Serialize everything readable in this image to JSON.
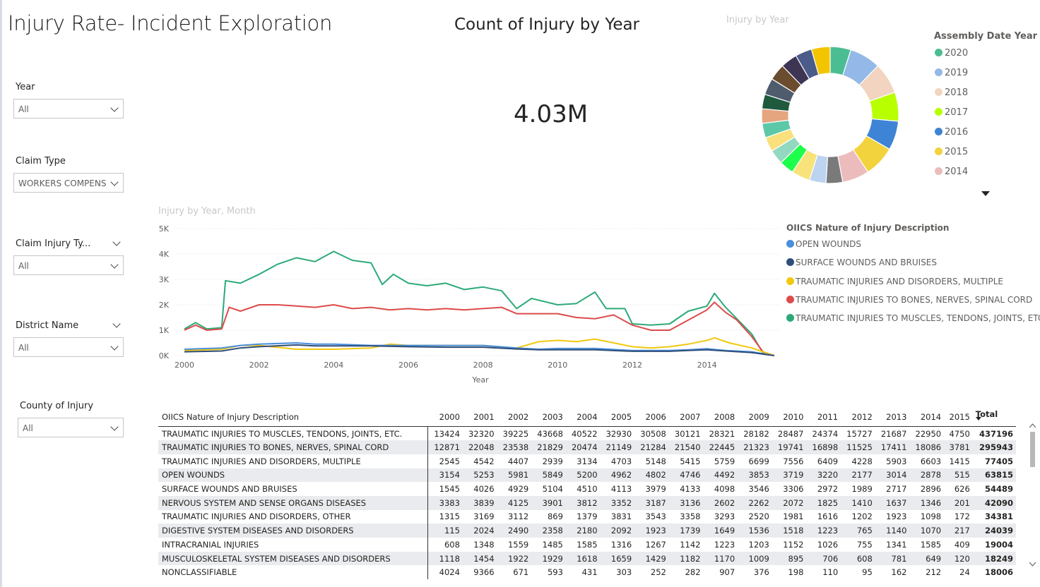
{
  "page": {
    "title": "Injury Rate- Incident Exploration"
  },
  "slicers": [
    {
      "label": "Year",
      "value": "All"
    },
    {
      "label": "Claim Type",
      "value": "WORKERS COMPENS..."
    },
    {
      "label": "Claim Injury Ty...",
      "value": "All"
    },
    {
      "label": "District Name",
      "value": "All"
    },
    {
      "label": "County of Injury",
      "value": "All"
    }
  ],
  "kpi": {
    "title": "Count of Injury by Year",
    "value": "4.03M"
  },
  "donut": {
    "title": "Injury by Year",
    "legend_title": "Assembly Date Year",
    "legend": [
      {
        "label": "2020",
        "color": "#4bbd92"
      },
      {
        "label": "2019",
        "color": "#94b9e8"
      },
      {
        "label": "2018",
        "color": "#f2d4c0"
      },
      {
        "label": "2017",
        "color": "#b8ff00"
      },
      {
        "label": "2016",
        "color": "#3e84d6"
      },
      {
        "label": "2015",
        "color": "#f3d33d"
      },
      {
        "label": "2014",
        "color": "#ecbcbc"
      }
    ],
    "segments": [
      {
        "color": "#4bbd92",
        "value": 1
      },
      {
        "color": "#94b9e8",
        "value": 1.5
      },
      {
        "color": "#f2d4c0",
        "value": 1.5
      },
      {
        "color": "#b8ff00",
        "value": 1.4
      },
      {
        "color": "#3e84d6",
        "value": 1.4
      },
      {
        "color": "#f3d33d",
        "value": 1.5
      },
      {
        "color": "#ecbcbc",
        "value": 1.3
      },
      {
        "color": "#7a7a7a",
        "value": 0.8
      },
      {
        "color": "#bcd4f0",
        "value": 0.8
      },
      {
        "color": "#f7e37a",
        "value": 0.9
      },
      {
        "color": "#1dff4a",
        "value": 0.7
      },
      {
        "color": "#93d8c0",
        "value": 0.7
      },
      {
        "color": "#f9e07c",
        "value": 0.7
      },
      {
        "color": "#5dc8a7",
        "value": 0.7
      },
      {
        "color": "#e4a57f",
        "value": 0.7
      },
      {
        "color": "#1f5a3e",
        "value": 0.7
      },
      {
        "color": "#4e5c6e",
        "value": 0.8
      },
      {
        "color": "#6b4c2f",
        "value": 0.8
      },
      {
        "color": "#3e3454",
        "value": 0.8
      },
      {
        "color": "#4b5c8a",
        "value": 0.8
      },
      {
        "color": "#f2c500",
        "value": 0.9
      }
    ]
  },
  "line_chart": {
    "title": "Injury by Year, Month",
    "legend_title": "OIICS Nature of Injury Description",
    "xlabel": "Year",
    "y_ticks": [
      "0K",
      "1K",
      "2K",
      "3K",
      "4K",
      "5K"
    ],
    "x_ticks": [
      "2000",
      "2002",
      "2004",
      "2006",
      "2008",
      "2010",
      "2012",
      "2014"
    ],
    "series": [
      {
        "name": "OPEN WOUNDS",
        "color": "#4a8fdc"
      },
      {
        "name": "SURFACE WOUNDS AND BRUISES",
        "color": "#2f4e7a"
      },
      {
        "name": "TRAUMATIC INJURIES AND DISORDERS, MULTIPLE",
        "color": "#f2c80f"
      },
      {
        "name": "TRAUMATIC INJURIES TO BONES, NERVES, SPINAL CORD",
        "color": "#dd4b4b"
      },
      {
        "name": "TRAUMATIC INJURIES TO MUSCLES, TENDONS, JOINTS, ETC.",
        "color": "#2baa78"
      }
    ]
  },
  "chart_data": {
    "type": "line",
    "ylim": [
      0,
      5000
    ],
    "xlim": [
      2000,
      2016
    ],
    "series": [
      {
        "name": "TRAUMATIC INJURIES TO MUSCLES, TENDONS, JOINTS, ETC.",
        "points": [
          [
            2000,
            1050
          ],
          [
            2000.3,
            1300
          ],
          [
            2000.6,
            1050
          ],
          [
            2001,
            1100
          ],
          [
            2001.1,
            2950
          ],
          [
            2001.5,
            2850
          ],
          [
            2002,
            3200
          ],
          [
            2002.5,
            3600
          ],
          [
            2003,
            3850
          ],
          [
            2003.5,
            3700
          ],
          [
            2004,
            4100
          ],
          [
            2004.5,
            3750
          ],
          [
            2005,
            3650
          ],
          [
            2005.3,
            2800
          ],
          [
            2005.6,
            3200
          ],
          [
            2006,
            2850
          ],
          [
            2006.5,
            2750
          ],
          [
            2007,
            2850
          ],
          [
            2007.5,
            2600
          ],
          [
            2008,
            2700
          ],
          [
            2008.5,
            2550
          ],
          [
            2008.9,
            1850
          ],
          [
            2009.3,
            2250
          ],
          [
            2010,
            2000
          ],
          [
            2010.5,
            2050
          ],
          [
            2011,
            2500
          ],
          [
            2011.3,
            1850
          ],
          [
            2011.8,
            1850
          ],
          [
            2012,
            1250
          ],
          [
            2012.5,
            1200
          ],
          [
            2013,
            1250
          ],
          [
            2013.5,
            1750
          ],
          [
            2014,
            1950
          ],
          [
            2014.2,
            2450
          ],
          [
            2014.5,
            1900
          ],
          [
            2014.8,
            1450
          ],
          [
            2015.2,
            850
          ],
          [
            2015.5,
            100
          ],
          [
            2015.8,
            0
          ]
        ]
      },
      {
        "name": "TRAUMATIC INJURIES TO BONES, NERVES, SPINAL CORD",
        "points": [
          [
            2000,
            1000
          ],
          [
            2000.3,
            1200
          ],
          [
            2000.6,
            1000
          ],
          [
            2001,
            1050
          ],
          [
            2001.2,
            1900
          ],
          [
            2001.5,
            1750
          ],
          [
            2002,
            2000
          ],
          [
            2002.5,
            2000
          ],
          [
            2003,
            1950
          ],
          [
            2003.5,
            1900
          ],
          [
            2004,
            2000
          ],
          [
            2004.5,
            1850
          ],
          [
            2005,
            1900
          ],
          [
            2005.5,
            1800
          ],
          [
            2006,
            1850
          ],
          [
            2006.5,
            1800
          ],
          [
            2007,
            1850
          ],
          [
            2007.5,
            1800
          ],
          [
            2008,
            1850
          ],
          [
            2008.5,
            1900
          ],
          [
            2008.9,
            1650
          ],
          [
            2009.5,
            1650
          ],
          [
            2010,
            1650
          ],
          [
            2010.5,
            1500
          ],
          [
            2011,
            1450
          ],
          [
            2011.5,
            1600
          ],
          [
            2012,
            1200
          ],
          [
            2012.5,
            1000
          ],
          [
            2013,
            1000
          ],
          [
            2013.5,
            1400
          ],
          [
            2014,
            1800
          ],
          [
            2014.2,
            2100
          ],
          [
            2014.5,
            1700
          ],
          [
            2014.8,
            1400
          ],
          [
            2015.2,
            750
          ],
          [
            2015.5,
            150
          ],
          [
            2015.8,
            0
          ]
        ]
      },
      {
        "name": "TRAUMATIC INJURIES AND DISORDERS, MULTIPLE",
        "points": [
          [
            2000,
            200
          ],
          [
            2001,
            250
          ],
          [
            2001.5,
            400
          ],
          [
            2002,
            400
          ],
          [
            2003,
            250
          ],
          [
            2004,
            250
          ],
          [
            2005,
            300
          ],
          [
            2005.5,
            450
          ],
          [
            2006,
            400
          ],
          [
            2007,
            400
          ],
          [
            2008,
            400
          ],
          [
            2008.9,
            300
          ],
          [
            2009.5,
            550
          ],
          [
            2010,
            600
          ],
          [
            2010.5,
            550
          ],
          [
            2011,
            650
          ],
          [
            2011.5,
            500
          ],
          [
            2012,
            350
          ],
          [
            2012.5,
            300
          ],
          [
            2013,
            350
          ],
          [
            2013.5,
            450
          ],
          [
            2014,
            600
          ],
          [
            2014.2,
            700
          ],
          [
            2014.6,
            500
          ],
          [
            2015.2,
            300
          ],
          [
            2015.8,
            0
          ]
        ]
      },
      {
        "name": "OPEN WOUNDS",
        "points": [
          [
            2000,
            250
          ],
          [
            2001,
            300
          ],
          [
            2001.5,
            400
          ],
          [
            2002,
            450
          ],
          [
            2003,
            500
          ],
          [
            2003.5,
            450
          ],
          [
            2004,
            450
          ],
          [
            2005,
            400
          ],
          [
            2006,
            400
          ],
          [
            2007,
            400
          ],
          [
            2008,
            400
          ],
          [
            2008.9,
            300
          ],
          [
            2009.5,
            250
          ],
          [
            2010,
            280
          ],
          [
            2011,
            280
          ],
          [
            2012,
            200
          ],
          [
            2013,
            200
          ],
          [
            2013.5,
            230
          ],
          [
            2014,
            270
          ],
          [
            2014.5,
            200
          ],
          [
            2015.2,
            150
          ],
          [
            2015.8,
            0
          ]
        ]
      },
      {
        "name": "SURFACE WOUNDS AND BRUISES",
        "points": [
          [
            2000,
            150
          ],
          [
            2001,
            180
          ],
          [
            2001.5,
            300
          ],
          [
            2002,
            350
          ],
          [
            2003,
            420
          ],
          [
            2003.5,
            380
          ],
          [
            2004,
            380
          ],
          [
            2005,
            380
          ],
          [
            2006,
            350
          ],
          [
            2007,
            330
          ],
          [
            2008,
            330
          ],
          [
            2008.9,
            260
          ],
          [
            2009.5,
            230
          ],
          [
            2010,
            230
          ],
          [
            2011,
            230
          ],
          [
            2012,
            170
          ],
          [
            2013,
            170
          ],
          [
            2013.5,
            200
          ],
          [
            2014,
            230
          ],
          [
            2014.5,
            180
          ],
          [
            2015.2,
            120
          ],
          [
            2015.8,
            0
          ]
        ]
      }
    ]
  },
  "table": {
    "header_first": "OIICS Nature of Injury Description",
    "years": [
      "2000",
      "2001",
      "2002",
      "2003",
      "2004",
      "2005",
      "2006",
      "2007",
      "2008",
      "2009",
      "2010",
      "2011",
      "2012",
      "2013",
      "2014",
      "2015"
    ],
    "total_label": "Total",
    "rows": [
      {
        "name": "TRAUMATIC INJURIES TO MUSCLES, TENDONS, JOINTS, ETC.",
        "values": [
          "13424",
          "32320",
          "39225",
          "43668",
          "40522",
          "32930",
          "30508",
          "30121",
          "28321",
          "28182",
          "28487",
          "24374",
          "15727",
          "21687",
          "22950",
          "4750"
        ],
        "total": "437196"
      },
      {
        "name": "TRAUMATIC INJURIES TO BONES, NERVES, SPINAL CORD",
        "values": [
          "12871",
          "22048",
          "23538",
          "21829",
          "20474",
          "21149",
          "21284",
          "21540",
          "22445",
          "21323",
          "19741",
          "16898",
          "11525",
          "17411",
          "18086",
          "3781"
        ],
        "total": "295943"
      },
      {
        "name": "TRAUMATIC INJURIES AND DISORDERS, MULTIPLE",
        "values": [
          "2545",
          "4542",
          "4407",
          "2939",
          "3134",
          "4703",
          "5148",
          "5415",
          "5759",
          "6699",
          "7556",
          "6409",
          "4228",
          "5903",
          "6603",
          "1415"
        ],
        "total": "77405"
      },
      {
        "name": "OPEN WOUNDS",
        "values": [
          "3154",
          "5253",
          "5981",
          "5849",
          "5200",
          "4962",
          "4802",
          "4746",
          "4492",
          "3853",
          "3719",
          "3220",
          "2177",
          "3014",
          "2878",
          "515"
        ],
        "total": "63815"
      },
      {
        "name": "SURFACE WOUNDS AND BRUISES",
        "values": [
          "1545",
          "4026",
          "4929",
          "5104",
          "4510",
          "4113",
          "3979",
          "4133",
          "4098",
          "3546",
          "3306",
          "2972",
          "1989",
          "2717",
          "2896",
          "626"
        ],
        "total": "54489"
      },
      {
        "name": "NERVOUS SYSTEM AND SENSE ORGANS DISEASES",
        "values": [
          "3383",
          "3839",
          "4125",
          "3901",
          "3812",
          "3352",
          "3187",
          "3136",
          "2602",
          "2262",
          "2072",
          "1825",
          "1410",
          "1637",
          "1346",
          "201"
        ],
        "total": "42090"
      },
      {
        "name": "TRAUMATIC INJURIES AND DISORDERS, OTHER",
        "values": [
          "1315",
          "3169",
          "3112",
          "869",
          "1379",
          "3831",
          "3543",
          "3358",
          "3293",
          "2520",
          "1981",
          "1616",
          "1202",
          "1923",
          "1098",
          "172"
        ],
        "total": "34381"
      },
      {
        "name": "DIGESTIVE SYSTEM DISEASES AND DISORDERS",
        "values": [
          "115",
          "2024",
          "2490",
          "2358",
          "2180",
          "2092",
          "1923",
          "1739",
          "1649",
          "1536",
          "1518",
          "1223",
          "765",
          "1140",
          "1070",
          "217"
        ],
        "total": "24039"
      },
      {
        "name": "INTRACRANIAL INJURIES",
        "values": [
          "608",
          "1348",
          "1559",
          "1485",
          "1585",
          "1316",
          "1267",
          "1142",
          "1223",
          "1203",
          "1152",
          "1026",
          "755",
          "1341",
          "1585",
          "409"
        ],
        "total": "19004"
      },
      {
        "name": "MUSCULOSKELETAL SYSTEM DISEASES AND DISORDERS",
        "values": [
          "1118",
          "1454",
          "1922",
          "1929",
          "1618",
          "1659",
          "1429",
          "1182",
          "1170",
          "1009",
          "895",
          "706",
          "608",
          "781",
          "649",
          "120"
        ],
        "total": "18249"
      },
      {
        "name": "NONCLASSIFIABLE",
        "values": [
          "4024",
          "9366",
          "671",
          "593",
          "431",
          "303",
          "252",
          "282",
          "907",
          "376",
          "198",
          "110",
          "95",
          "162",
          "212",
          "24"
        ],
        "total": "18006"
      }
    ]
  }
}
